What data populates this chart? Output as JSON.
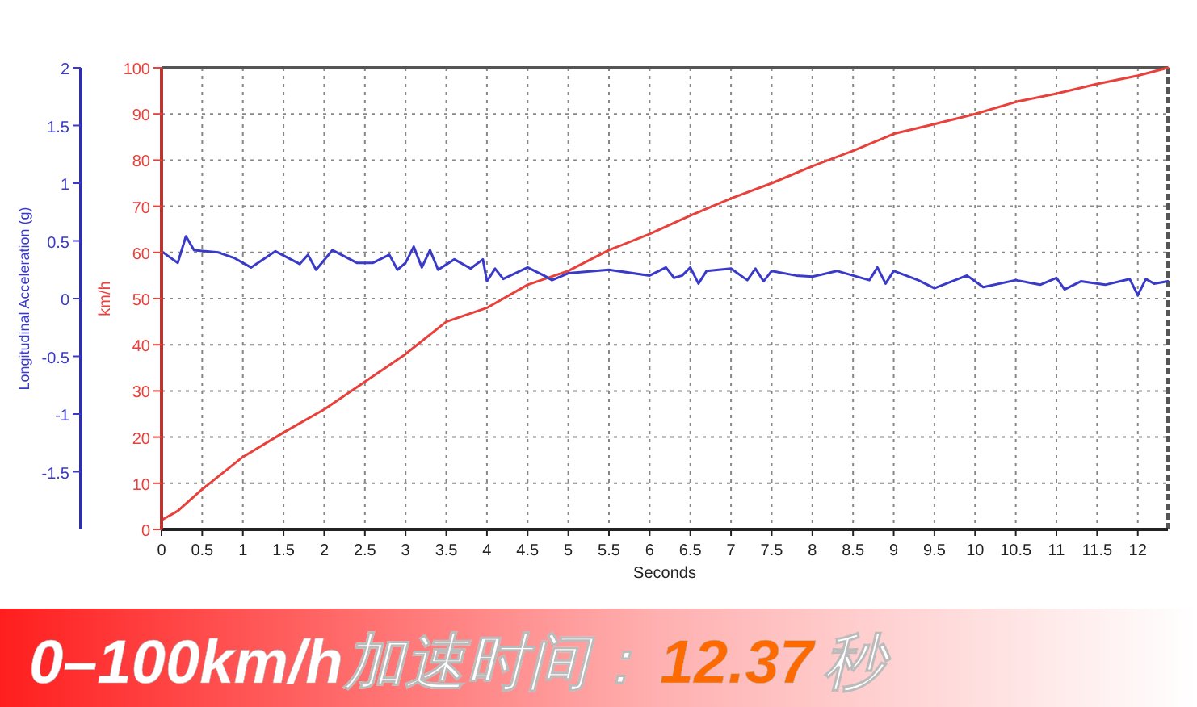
{
  "chart_data": {
    "type": "line",
    "xlabel": "Seconds",
    "ylabel": "km/h",
    "y2label": "Longitudinal Acceleration (g)",
    "annotations": [
      "0–100km/h加速时间：",
      "12.37",
      "秒"
    ],
    "xlim": [
      0,
      12.37
    ],
    "xticks": [
      0,
      0.5,
      1,
      1.5,
      2,
      2.5,
      3,
      3.5,
      4,
      4.5,
      5,
      5.5,
      6,
      6.5,
      7,
      7.5,
      8,
      8.5,
      9,
      9.5,
      10,
      10.5,
      11,
      11.5,
      12
    ],
    "ylim": [
      0,
      100
    ],
    "yticks": [
      0,
      10,
      20,
      30,
      40,
      50,
      60,
      70,
      80,
      90,
      100
    ],
    "y2lim": [
      -2,
      2
    ],
    "y2ticks": [
      -1.5,
      -1,
      -0.5,
      0,
      0.5,
      1,
      1.5,
      2
    ],
    "grid": true,
    "line_style": "solid",
    "series": [
      {
        "color": "#e8403a",
        "x": [
          0,
          0.2,
          0.5,
          1,
          1.5,
          2,
          2.5,
          3,
          3.5,
          4,
          4.5,
          5,
          5.5,
          6,
          6.3,
          6.5,
          7,
          7.5,
          8,
          8.5,
          9,
          9.5,
          10,
          10.5,
          11,
          11.5,
          12,
          12.37
        ],
        "values": [
          2,
          4,
          8.7,
          15.7,
          21,
          26,
          32,
          38,
          45,
          48,
          53,
          56,
          60.5,
          64,
          66.4,
          68,
          71.7,
          75,
          78.7,
          82,
          85.7,
          87.8,
          90,
          92.6,
          94.4,
          96.5,
          98.3,
          100
        ]
      },
      {
        "color": "#3a3ac8",
        "axis": "y2",
        "x": [
          0,
          0.2,
          0.3,
          0.4,
          0.7,
          0.9,
          1.1,
          1.4,
          1.7,
          1.8,
          1.9,
          2.1,
          2.4,
          2.6,
          2.8,
          2.9,
          3.0,
          3.1,
          3.2,
          3.3,
          3.4,
          3.6,
          3.8,
          3.95,
          4.0,
          4.1,
          4.2,
          4.5,
          4.7,
          4.8,
          5,
          5.5,
          6,
          6.2,
          6.3,
          6.4,
          6.5,
          6.6,
          6.7,
          7,
          7.2,
          7.3,
          7.4,
          7.5,
          7.8,
          8,
          8.3,
          8.5,
          8.7,
          8.8,
          8.9,
          9,
          9.3,
          9.5,
          9.9,
          10.1,
          10.5,
          10.8,
          11,
          11.1,
          11.3,
          11.6,
          11.9,
          12,
          12.1,
          12.2,
          12.37
        ],
        "values": [
          0.41,
          0.31,
          0.54,
          0.42,
          0.4,
          0.35,
          0.27,
          0.41,
          0.3,
          0.38,
          0.25,
          0.42,
          0.31,
          0.31,
          0.38,
          0.25,
          0.31,
          0.45,
          0.27,
          0.42,
          0.25,
          0.34,
          0.26,
          0.34,
          0.15,
          0.26,
          0.17,
          0.27,
          0.2,
          0.16,
          0.22,
          0.25,
          0.2,
          0.27,
          0.18,
          0.2,
          0.27,
          0.13,
          0.24,
          0.26,
          0.16,
          0.26,
          0.15,
          0.24,
          0.2,
          0.19,
          0.24,
          0.2,
          0.16,
          0.27,
          0.13,
          0.24,
          0.16,
          0.09,
          0.2,
          0.1,
          0.16,
          0.12,
          0.18,
          0.08,
          0.15,
          0.12,
          0.17,
          0.03,
          0.17,
          0.13,
          0.15
        ]
      }
    ]
  }
}
